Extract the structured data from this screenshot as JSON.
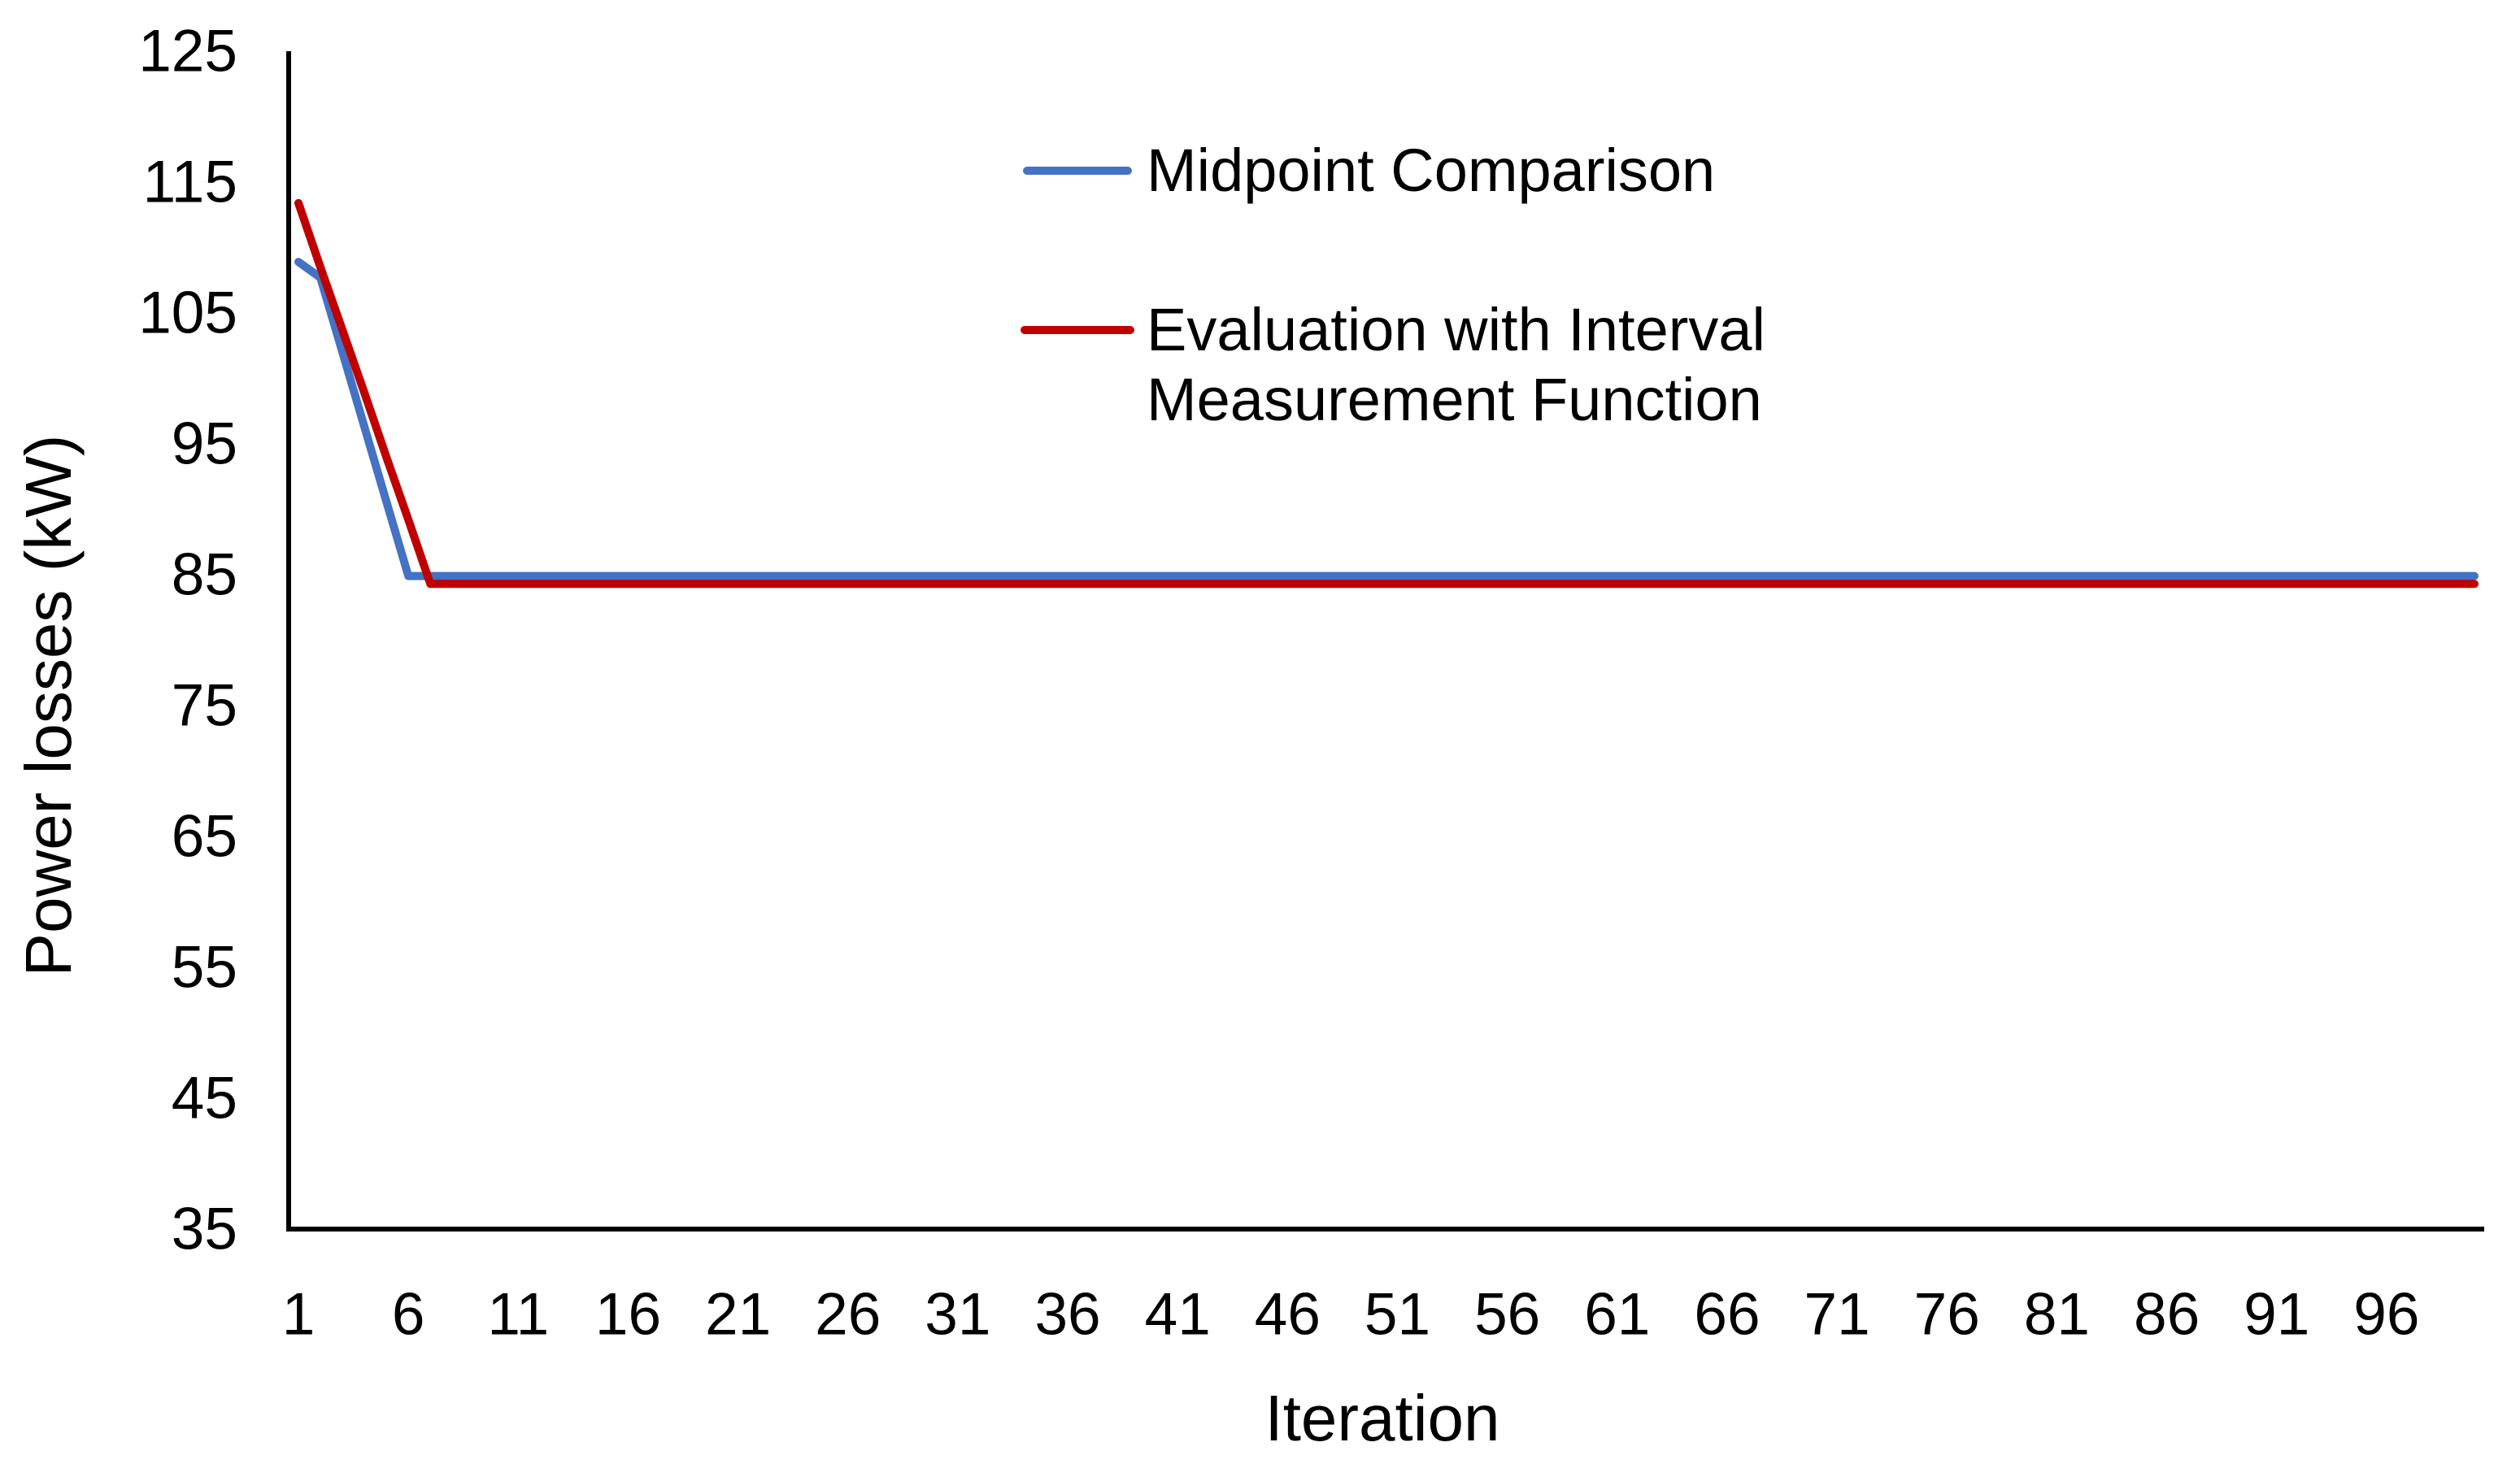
{
  "chart_data": {
    "type": "line",
    "title": "",
    "xlabel": "Iteration",
    "ylabel": "Power losses (kW)",
    "xlim": [
      1,
      101
    ],
    "ylim": [
      35,
      125
    ],
    "x_ticks": [
      1,
      6,
      11,
      16,
      21,
      26,
      31,
      36,
      41,
      46,
      51,
      56,
      61,
      66,
      71,
      76,
      81,
      86,
      91,
      96
    ],
    "y_ticks": [
      35,
      45,
      55,
      65,
      75,
      85,
      95,
      105,
      115,
      125
    ],
    "grid": false,
    "legend_position": "inside-top-center",
    "series": [
      {
        "name": "Midpoint Comparison",
        "color": "#4472C4",
        "start_iteration": 1,
        "values_initial": [
          108.9,
          107.7,
          102.0,
          96.3,
          90.6,
          84.9
        ],
        "converged_value": 84.9,
        "converged_from_iteration": 6,
        "last_iteration": 100
      },
      {
        "name": "Evaluation with Interval Measurement Function",
        "color": "#C00000",
        "start_iteration": 1,
        "values_initial": [
          113.4,
          108.5,
          103.7,
          98.9,
          94.0,
          89.2,
          84.3
        ],
        "converged_value": 84.3,
        "converged_from_iteration": 7,
        "last_iteration": 100
      }
    ]
  },
  "axis_titles": {
    "x": "Iteration",
    "y": "Power losses (kW)"
  },
  "legend": {
    "items": [
      {
        "label": "Midpoint Comparison",
        "color": "#4472C4"
      },
      {
        "label_line1": "Evaluation with Interval",
        "label_line2": "Measurement Function",
        "color": "#C00000"
      }
    ]
  },
  "colors": {
    "series1": "#4472C4",
    "series2": "#C00000",
    "axis": "#000000",
    "text": "#000000",
    "background": "#FFFFFF"
  }
}
